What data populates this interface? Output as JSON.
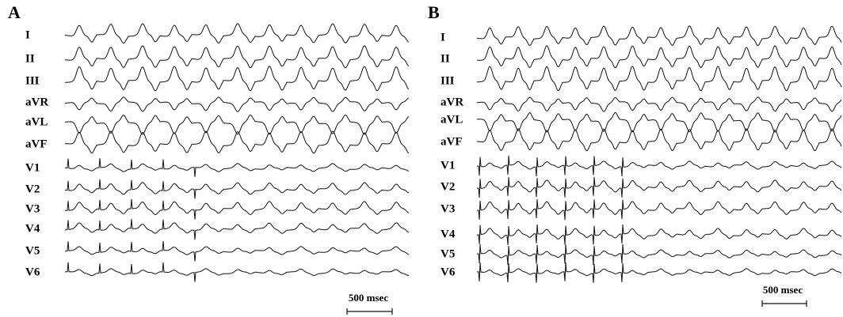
{
  "panels": [
    {
      "label": "A",
      "leads": [
        "I",
        "II",
        "III",
        "aVR",
        "aVL",
        "aVF",
        "V1",
        "V2",
        "V3",
        "V4",
        "V5",
        "V6"
      ],
      "scale_bar": "500 msec"
    },
    {
      "label": "B",
      "leads": [
        "I",
        "II",
        "III",
        "aVR",
        "aVL",
        "aVF",
        "V1",
        "V2",
        "V3",
        "V4",
        "V5",
        "V6"
      ],
      "scale_bar": "500 msec"
    }
  ]
}
